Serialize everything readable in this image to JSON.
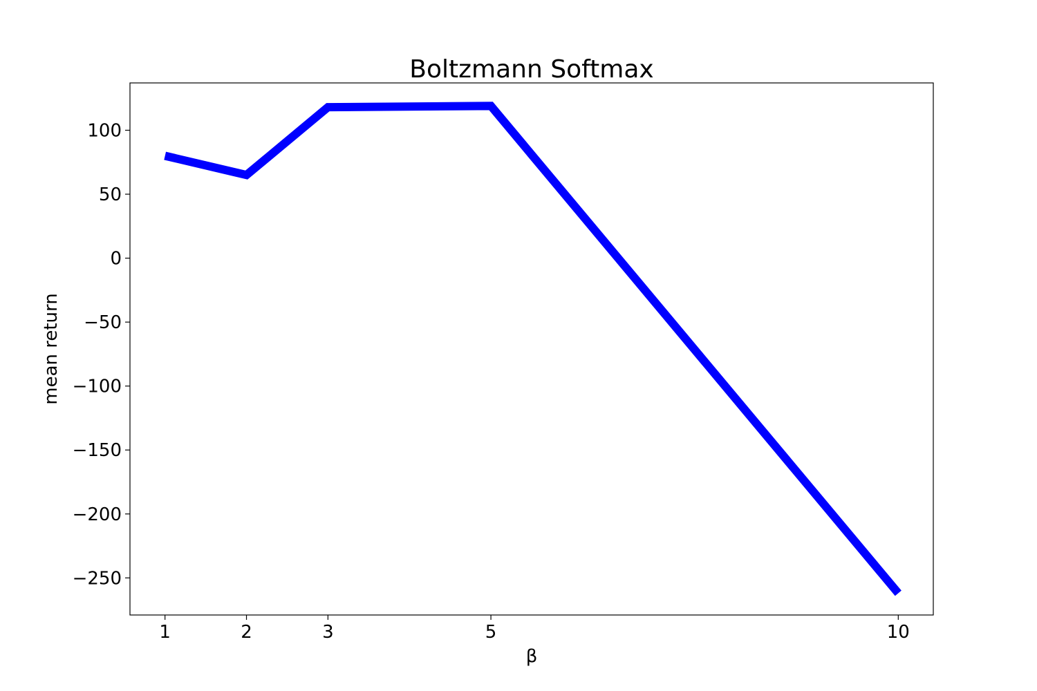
{
  "chart_data": {
    "type": "line",
    "title": "Boltzmann Softmax",
    "xlabel": "β",
    "ylabel": "mean return",
    "x": [
      1,
      2,
      3,
      5,
      10
    ],
    "xticks": [
      1,
      2,
      3,
      5,
      10
    ],
    "xtick_labels": [
      "1",
      "2",
      "3",
      "5",
      "10"
    ],
    "yticks": [
      100,
      50,
      0,
      -50,
      -100,
      -150,
      -200,
      -250
    ],
    "ytick_labels": [
      "100",
      "50",
      "0",
      "−50",
      "−100",
      "−150",
      "−200",
      "−250"
    ],
    "xlim": [
      0.57,
      10.43
    ],
    "ylim": [
      -279,
      137
    ],
    "grid": false,
    "series": [
      {
        "values": [
          80,
          65,
          118,
          119,
          -262
        ],
        "color": "#0000ff"
      }
    ]
  }
}
